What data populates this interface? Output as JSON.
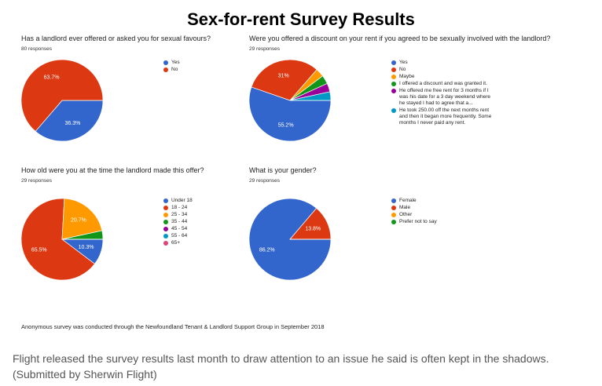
{
  "title": "Sex-for-rent Survey Results",
  "chart_data": [
    {
      "type": "pie",
      "title": "Has a landlord ever offered or asked you for sexual favours?",
      "subtitle": "80 responses",
      "categories": [
        "Yes",
        "No"
      ],
      "values": [
        36.3,
        63.7
      ],
      "value_labels": [
        "36.3%",
        "63.7%"
      ],
      "colors": [
        "#3366cc",
        "#dc3912"
      ]
    },
    {
      "type": "pie",
      "title": "Were you offered a discount on your rent if you agreed to be sexually involved with the landlord?",
      "subtitle": "29 responses",
      "categories": [
        "Yes",
        "No",
        "Maybe",
        "I offered a discount and was granted it.",
        "He offered me free rent for 3 months if I was his date for a 3 day weekend where he stayed I had to agree that a...",
        "He took 250.00 off the next months rent and then it began more frequently. Some months I never paid any rent."
      ],
      "values": [
        55.2,
        31,
        3.4,
        3.4,
        3.4,
        3.4
      ],
      "value_labels": [
        "55.2%",
        "31%",
        null,
        null,
        null,
        null
      ],
      "colors": [
        "#3366cc",
        "#dc3912",
        "#ff9900",
        "#109618",
        "#990099",
        "#0099c6"
      ]
    },
    {
      "type": "pie",
      "title": "How old were you at the time the landlord made this offer?",
      "subtitle": "29 responses",
      "categories": [
        "Under 18",
        "18 - 24",
        "25 - 34",
        "35 - 44",
        "45 - 54",
        "55 - 64",
        "65+"
      ],
      "values": [
        10.3,
        65.5,
        20.7,
        3.4,
        0,
        0,
        0
      ],
      "value_labels": [
        "10.3%",
        "65.5%",
        "20.7%",
        null,
        null,
        null,
        null
      ],
      "colors": [
        "#3366cc",
        "#dc3912",
        "#ff9900",
        "#109618",
        "#990099",
        "#0099c6",
        "#dd4477"
      ]
    },
    {
      "type": "pie",
      "title": "What is your gender?",
      "subtitle": "29 responses",
      "categories": [
        "Female",
        "Male",
        "Other",
        "Prefer not to say"
      ],
      "values": [
        86.2,
        13.8,
        0,
        0
      ],
      "value_labels": [
        "86.2%",
        "13.8%",
        null,
        null
      ],
      "colors": [
        "#3366cc",
        "#dc3912",
        "#ff9900",
        "#109618"
      ]
    }
  ],
  "footnote": "Anonymous survey was conducted through the Newfoundland Tenant & Landlord Support Group in September 2018",
  "caption": "Flight released the survey results last month to draw attention to an issue he said is often kept in the shadows. (Submitted by Sherwin Flight)"
}
